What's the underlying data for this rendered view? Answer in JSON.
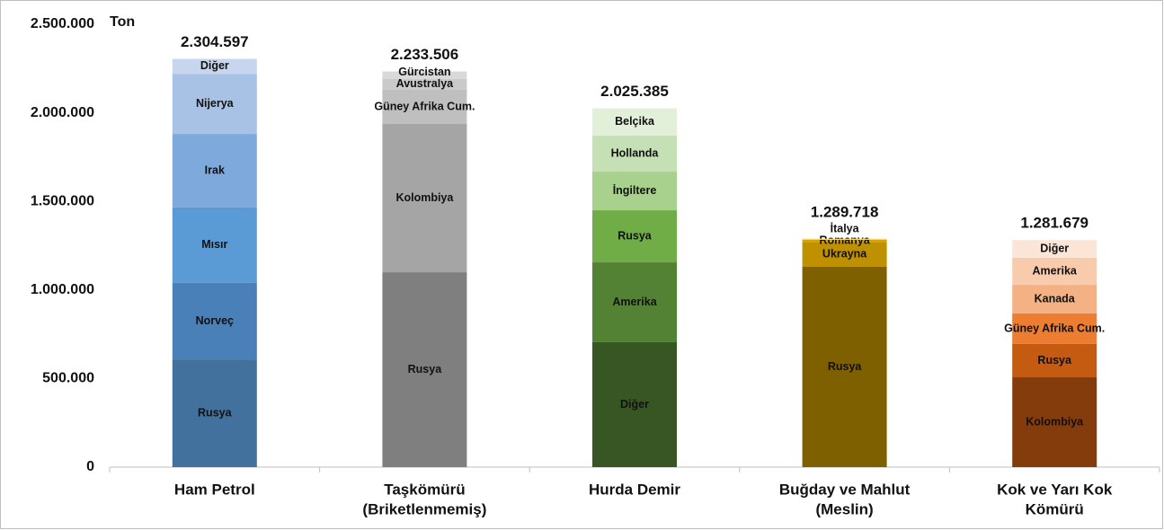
{
  "chart_data": {
    "type": "stacked_bar",
    "y_label": "Ton",
    "ylim": [
      0,
      2500000
    ],
    "yticks": [
      0,
      {
        "value": 500000,
        "label": "500.000"
      },
      {
        "value": 1000000,
        "label": "1.000.000"
      },
      {
        "value": 1500000,
        "label": "1.500.000"
      },
      {
        "value": 2000000,
        "label": "2.000.000"
      },
      {
        "value": 2500000,
        "label": "2.500.000"
      }
    ],
    "bars": [
      {
        "category": [
          "Ham Petrol"
        ],
        "total": {
          "value": 2304597,
          "label": "2.304.597"
        },
        "segments": [
          {
            "name": "Rusya",
            "value": 608000,
            "color": "#41719c"
          },
          {
            "name": "Norveç",
            "value": 432000,
            "color": "#4a80b8"
          },
          {
            "name": "Mısır",
            "value": 426000,
            "color": "#5b9bd5"
          },
          {
            "name": "Irak",
            "value": 415000,
            "color": "#7ea9dc"
          },
          {
            "name": "Nijerya",
            "value": 339000,
            "color": "#a8c2e6"
          },
          {
            "name": "Diğer",
            "value": 84597,
            "color": "#c7d6ee"
          }
        ]
      },
      {
        "category": [
          "Taşkömürü",
          "(Briketlenmemiş)"
        ],
        "total": {
          "value": 2233506,
          "label": "2.233.506"
        },
        "segments": [
          {
            "name": "Rusya",
            "value": 1100000,
            "color": "#7f7f7f"
          },
          {
            "name": "Kolombiya",
            "value": 837000,
            "color": "#a5a5a5"
          },
          {
            "name": "Güney Afrika Cum.",
            "value": 193000,
            "color": "#bfbfbf"
          },
          {
            "name": "Avustralya",
            "value": 61000,
            "color": "#cacaca"
          },
          {
            "name": "Gürcistan",
            "value": 42506,
            "color": "#d9d9d9"
          }
        ]
      },
      {
        "category": [
          "Hurda Demir"
        ],
        "total": {
          "value": 2025385,
          "label": "2.025.385"
        },
        "segments": [
          {
            "name": "Diğer",
            "value": 705000,
            "color": "#375623"
          },
          {
            "name": "Amerika",
            "value": 451000,
            "color": "#548235"
          },
          {
            "name": "Rusya",
            "value": 294000,
            "color": "#70ad47"
          },
          {
            "name": "İngiltere",
            "value": 218000,
            "color": "#a9d18e"
          },
          {
            "name": "Hollanda",
            "value": 203000,
            "color": "#c5e0b4"
          },
          {
            "name": "Belçika",
            "value": 154385,
            "color": "#e2f0d9"
          }
        ]
      },
      {
        "category": [
          "Buğday ve Mahlut",
          "(Meslin)"
        ],
        "total": {
          "value": 1289718,
          "label": "1.289.718"
        },
        "segments": [
          {
            "name": "Rusya",
            "value": 1131000,
            "color": "#7f6000"
          },
          {
            "name": "Ukrayna",
            "value": 140000,
            "color": "#bf9000"
          },
          {
            "name": "Romanya",
            "value": 12000,
            "color": "#d6a300"
          },
          {
            "name": "İtalya",
            "value": 6718,
            "color": "#ffd966"
          }
        ]
      },
      {
        "category": [
          "Kok ve Yarı Kok",
          "Kömürü"
        ],
        "total": {
          "value": 1281679,
          "label": "1.281.679"
        },
        "segments": [
          {
            "name": "Kolombiya",
            "value": 507000,
            "color": "#843c0c"
          },
          {
            "name": "Rusya",
            "value": 188000,
            "color": "#c55a11"
          },
          {
            "name": "Güney Afrika Cum.",
            "value": 172000,
            "color": "#ed7d31"
          },
          {
            "name": "Kanada",
            "value": 162000,
            "color": "#f4b183"
          },
          {
            "name": "Amerika",
            "value": 153000,
            "color": "#f8cbad"
          },
          {
            "name": "Diğer",
            "value": 99679,
            "color": "#fbe5d6"
          }
        ]
      }
    ]
  }
}
